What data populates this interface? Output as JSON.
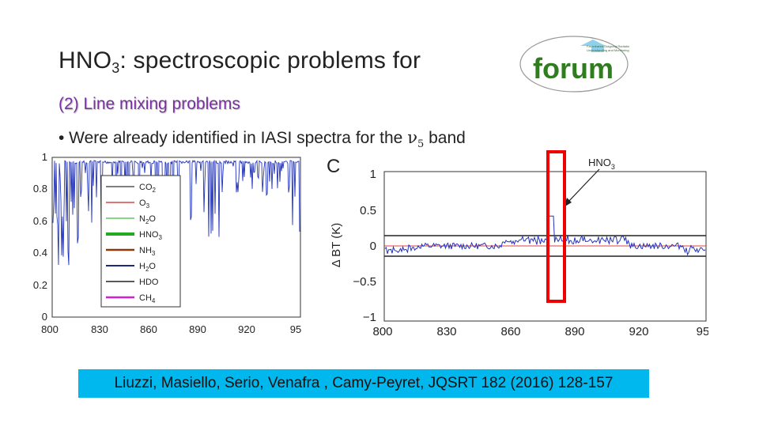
{
  "slide": {
    "title_main": "HNO",
    "title_sub": "3",
    "title_rest": ": spectroscopic problems for",
    "subtitle": "(2) Line mixing problems",
    "bullet_prefix": "• Were already identified in IASI spectra for the ",
    "bullet_nu": "ν",
    "bullet_nu_sub": "5",
    "bullet_suffix": " band",
    "reference": "Liuzzi, Masiello, Serio, Venafra , Camy-Peyret, JQSRT  182 (2016) 128-157",
    "reference_bg": "#00b7ee"
  },
  "logo": {
    "text": "forum"
  },
  "chart_data": [
    {
      "type": "line",
      "xticks": [
        "800",
        "830",
        "860",
        "890",
        "920",
        "95"
      ],
      "yticks": [
        "0",
        "0.2",
        "0.4",
        "0.6",
        "0.8",
        "1"
      ],
      "ylim": [
        0,
        1
      ],
      "legend": [
        {
          "name": "CO2",
          "base": "CO",
          "sub": "2",
          "color": "#333333"
        },
        {
          "name": "O3",
          "base": "O",
          "sub": "3",
          "color": "#cc2222"
        },
        {
          "name": "N2O",
          "base": "N",
          "sub": "2",
          "suffix": "O",
          "color": "#44bb44"
        },
        {
          "name": "HNO3",
          "base": "HNO",
          "sub": "3",
          "color": "#22aa22"
        },
        {
          "name": "NH3",
          "base": "NH",
          "sub": "3",
          "color": "#8b3a10"
        },
        {
          "name": "H2O",
          "base": "H",
          "sub": "2",
          "suffix": "O",
          "color": "#1a2a7a"
        },
        {
          "name": "HDO",
          "base": "HDO",
          "color": "#222222"
        },
        {
          "name": "CH4",
          "base": "CH",
          "sub": "4",
          "color": "#d020d0"
        }
      ]
    },
    {
      "type": "line",
      "panel_label": "C",
      "ylabel": "Δ BT (K)",
      "xticks": [
        "800",
        "830",
        "860",
        "890",
        "920",
        "95"
      ],
      "yticks": [
        "1",
        "0.5",
        "0",
        "−0.5",
        "−1"
      ],
      "ylim": [
        -1,
        1
      ],
      "annotation": "HNO3",
      "annotation_base": "HNO",
      "annotation_sub": "3",
      "highlight_color": "#ee0000",
      "peak_x_approx": 878
    }
  ]
}
